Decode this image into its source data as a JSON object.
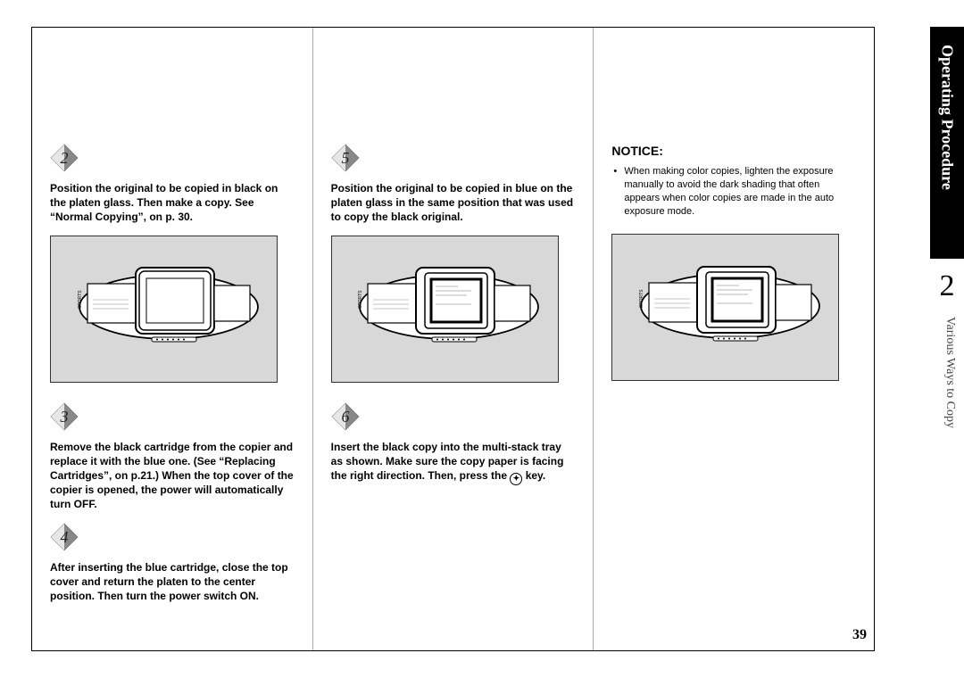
{
  "sideTab": {
    "heading": "Operating Procedure",
    "chapterNumber": "2",
    "subtitle": "Various Ways to Copy"
  },
  "pageNumber": "39",
  "columns": {
    "left": {
      "steps": [
        {
          "num": "2",
          "text": "Position the original to be copied in black on the platen glass. Then make a copy. See “Normal Copying”, on p. 30.",
          "hasFigure": true,
          "figureLid": "closed"
        },
        {
          "num": "3",
          "text": "Remove the black cartridge from the copier and replace it with the blue one. (See “Replacing Cartridges”, on p.21.) When the top cover of the copier is opened, the power will automatically turn OFF.",
          "hasFigure": false
        },
        {
          "num": "4",
          "text": "After inserting the blue cartridge, close the top cover and return the platen to the center position. Then turn the power switch ON.",
          "hasFigure": false
        }
      ]
    },
    "middle": {
      "steps": [
        {
          "num": "5",
          "text": "Position the original to be copied in blue on the platen glass in the same position that was used to copy the black original.",
          "hasFigure": true,
          "figureLid": "open"
        },
        {
          "num": "6",
          "text": "Insert the black copy into the multi-stack tray as shown. Make sure the copy paper is facing the right direction. Then, press the ⓘ key.",
          "hasFigure": false
        }
      ]
    },
    "right": {
      "notice": {
        "title": "NOTICE:",
        "body": "When making color copies, lighten the exposure manually to avoid the dark shading that often appears when color copies are made in the auto exposure mode."
      },
      "figureLid": "open"
    }
  },
  "styling": {
    "pageBg": "#ffffff",
    "figureBg": "#d8d8d8",
    "border": "#000000",
    "textColor": "#000000",
    "badgeDark": "#4a4a4a",
    "badgeLight": "#d0d0d0",
    "fontSizeBody": 12,
    "fontSizeNotice": 11
  }
}
